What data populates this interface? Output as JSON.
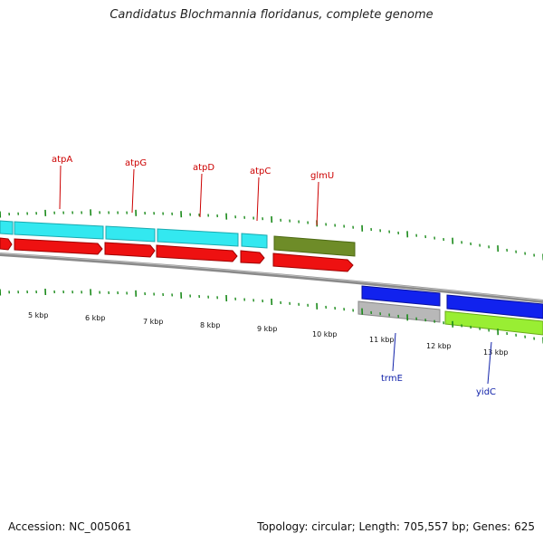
{
  "title": "Candidatus Blochmannia floridanus, complete genome",
  "footer": {
    "accession": "Accession: NC_005061",
    "summary": "Topology: circular; Length: 705,557 bp; Genes: 625"
  },
  "colors": {
    "cyan": "#33e8f0",
    "red": "#ee1111",
    "olive": "#6e8c28",
    "blue": "#1122ee",
    "grey": "#b8b8b8",
    "lime": "#99ee33",
    "tick": "#1a8a1a",
    "backbone": "#888888",
    "label_red": "#cc0000",
    "label_blue": "#1122aa"
  },
  "kbp_labels": [
    "5 kbp",
    "6 kbp",
    "7 kbp",
    "8 kbp",
    "9 kbp",
    "10 kbp",
    "11 kbp",
    "12 kbp",
    "13 kbp"
  ],
  "genes": [
    {
      "name": "atpA",
      "strand": "top"
    },
    {
      "name": "atpG",
      "strand": "top"
    },
    {
      "name": "atpD",
      "strand": "top"
    },
    {
      "name": "atpC",
      "strand": "top"
    },
    {
      "name": "glmU",
      "strand": "top"
    },
    {
      "name": "trmE",
      "strand": "bottom"
    },
    {
      "name": "yidC",
      "strand": "bottom"
    }
  ]
}
